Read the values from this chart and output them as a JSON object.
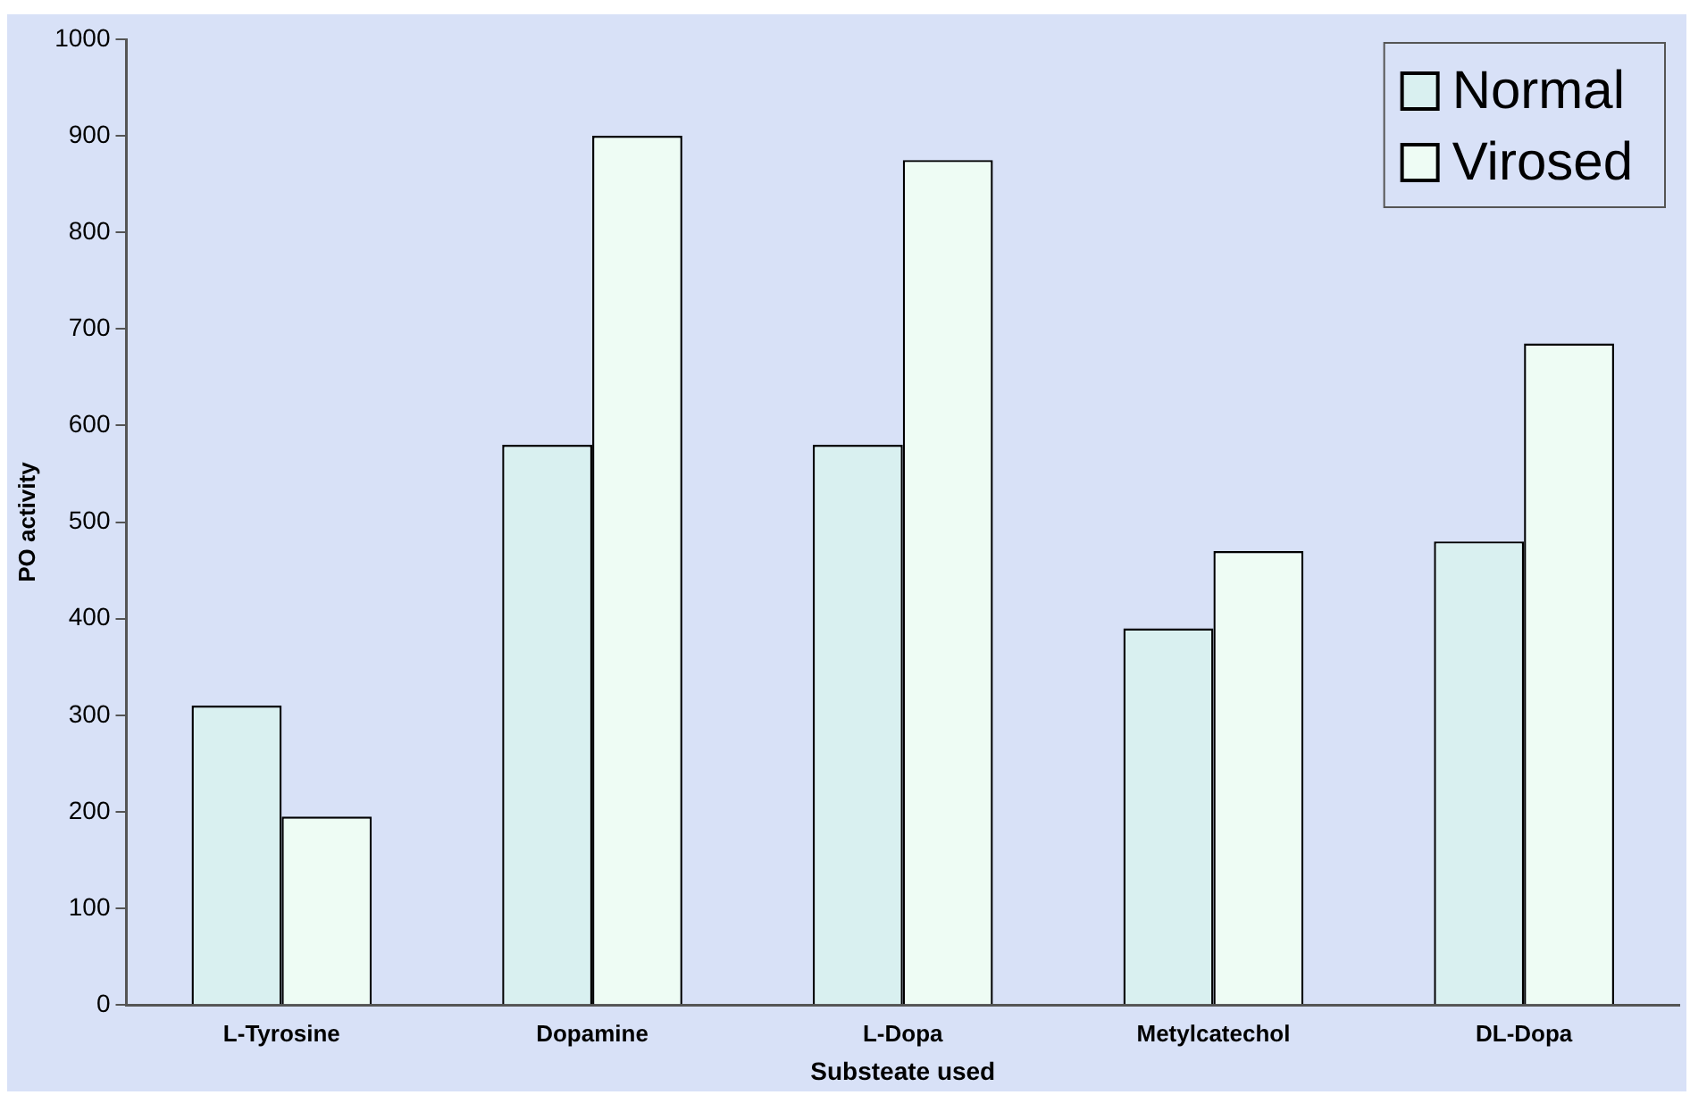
{
  "chart_data": {
    "type": "bar",
    "xlabel": "Substeate used",
    "ylabel": "PO activity",
    "categories": [
      "L-Tyrosine",
      "Dopamine",
      "L-Dopa",
      "Metylcatechol",
      "DL-Dopa"
    ],
    "series": [
      {
        "name": "Normal",
        "color": "#d9f0f0",
        "values": [
          310,
          580,
          580,
          390,
          480
        ]
      },
      {
        "name": "Virosed",
        "color": "#eefcf4",
        "values": [
          195,
          900,
          875,
          470,
          685
        ]
      }
    ],
    "ylim": [
      0,
      1000
    ],
    "yticks": [
      0,
      100,
      200,
      300,
      400,
      500,
      600,
      700,
      800,
      900,
      1000
    ],
    "grid": false,
    "legend": "top right"
  }
}
